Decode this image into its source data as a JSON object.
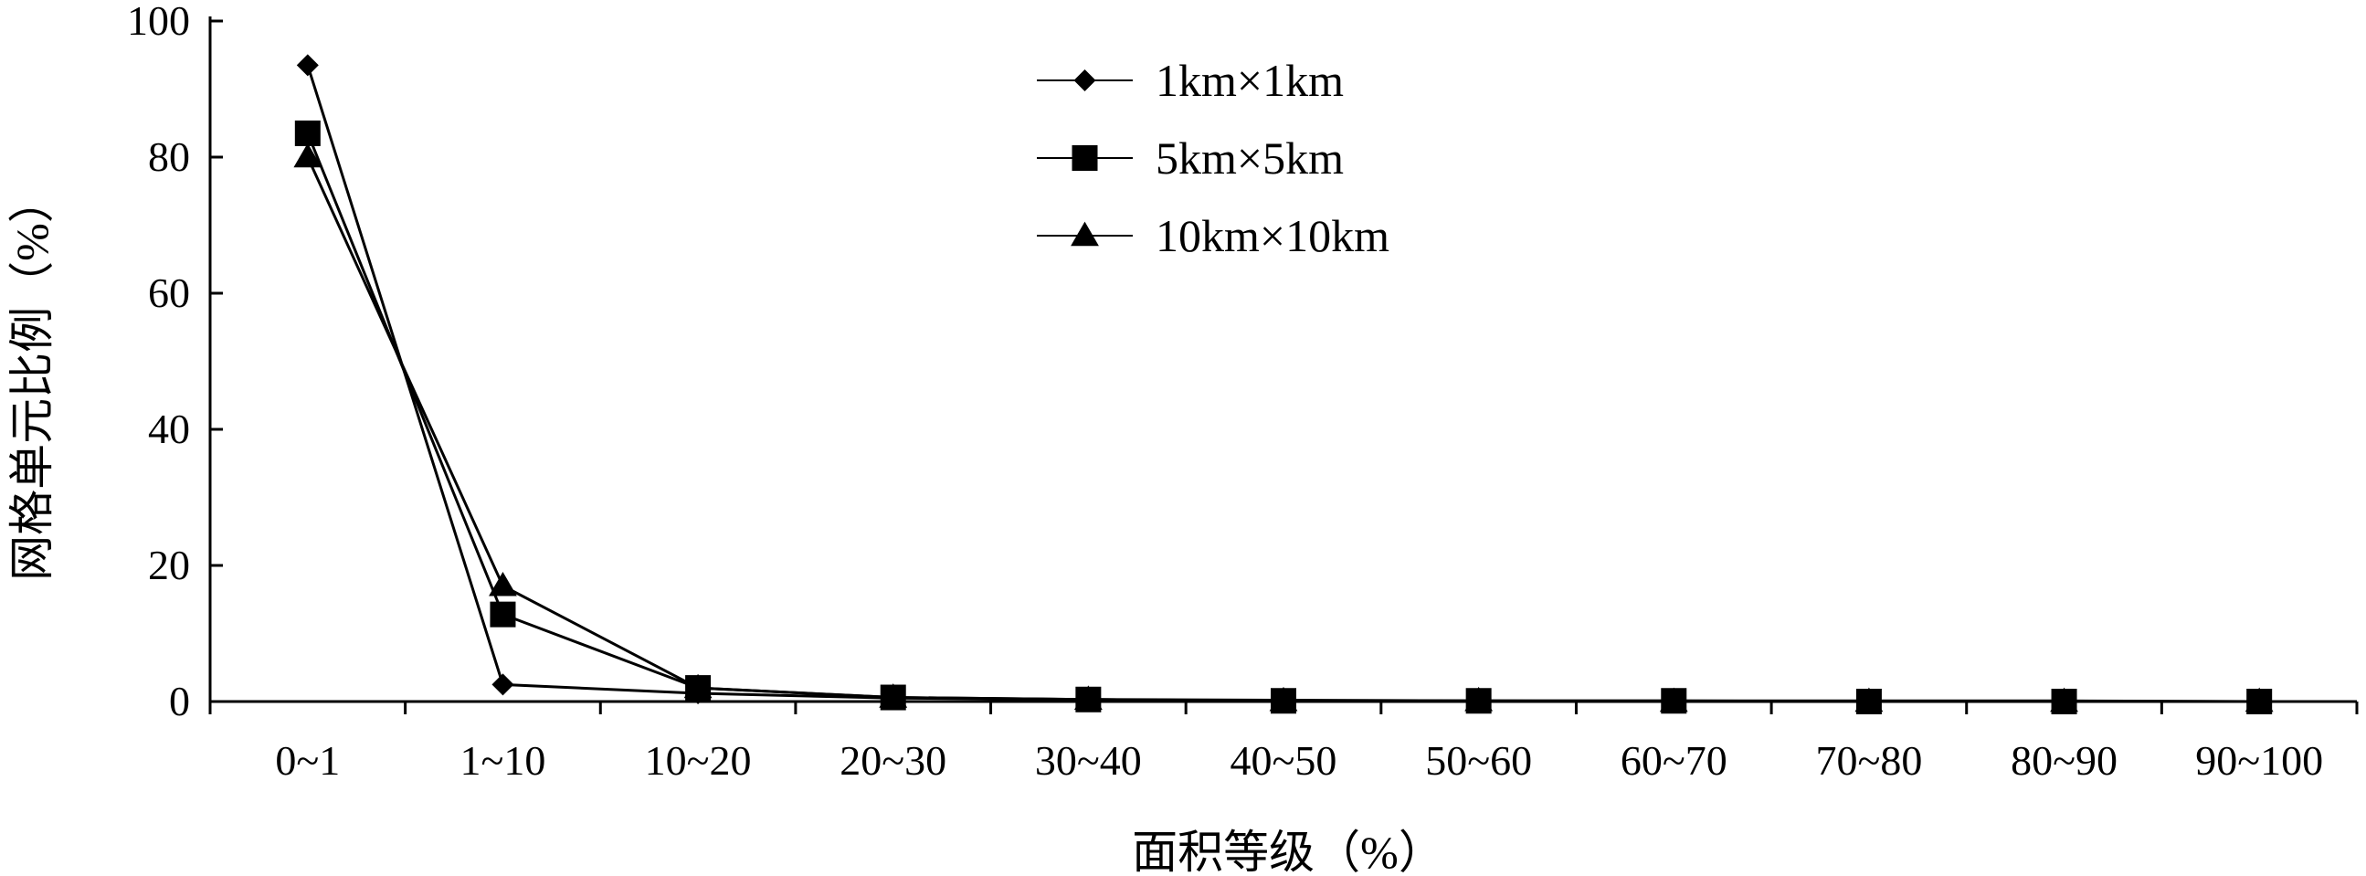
{
  "chart_data": {
    "type": "line",
    "categories": [
      "0~1",
      "1~10",
      "10~20",
      "20~30",
      "30~40",
      "40~50",
      "50~60",
      "60~70",
      "70~80",
      "80~90",
      "90~100"
    ],
    "series": [
      {
        "name": "1km×1km",
        "marker": "diamond",
        "values": [
          93.5,
          2.5,
          1.2,
          0.5,
          0.3,
          0.2,
          0.1,
          0.1,
          0.1,
          0.1,
          0
        ]
      },
      {
        "name": "5km×5km",
        "marker": "square",
        "values": [
          83.5,
          12.8,
          2.0,
          0.6,
          0.3,
          0.1,
          0.1,
          0.1,
          0,
          0,
          0
        ]
      },
      {
        "name": "10km×10km",
        "marker": "triangle",
        "values": [
          80.0,
          17.0,
          2.0,
          0.6,
          0.3,
          0.1,
          0.1,
          0,
          0,
          0,
          0
        ]
      }
    ],
    "xlabel": "面积等级（%）",
    "ylabel": "网格单元比例（%）",
    "ylim": [
      0,
      100
    ],
    "yticks": [
      0,
      20,
      40,
      60,
      80,
      100
    ],
    "grid": false,
    "legend": "top-center",
    "colors": {
      "line": "#000000",
      "marker": "#000000"
    }
  }
}
